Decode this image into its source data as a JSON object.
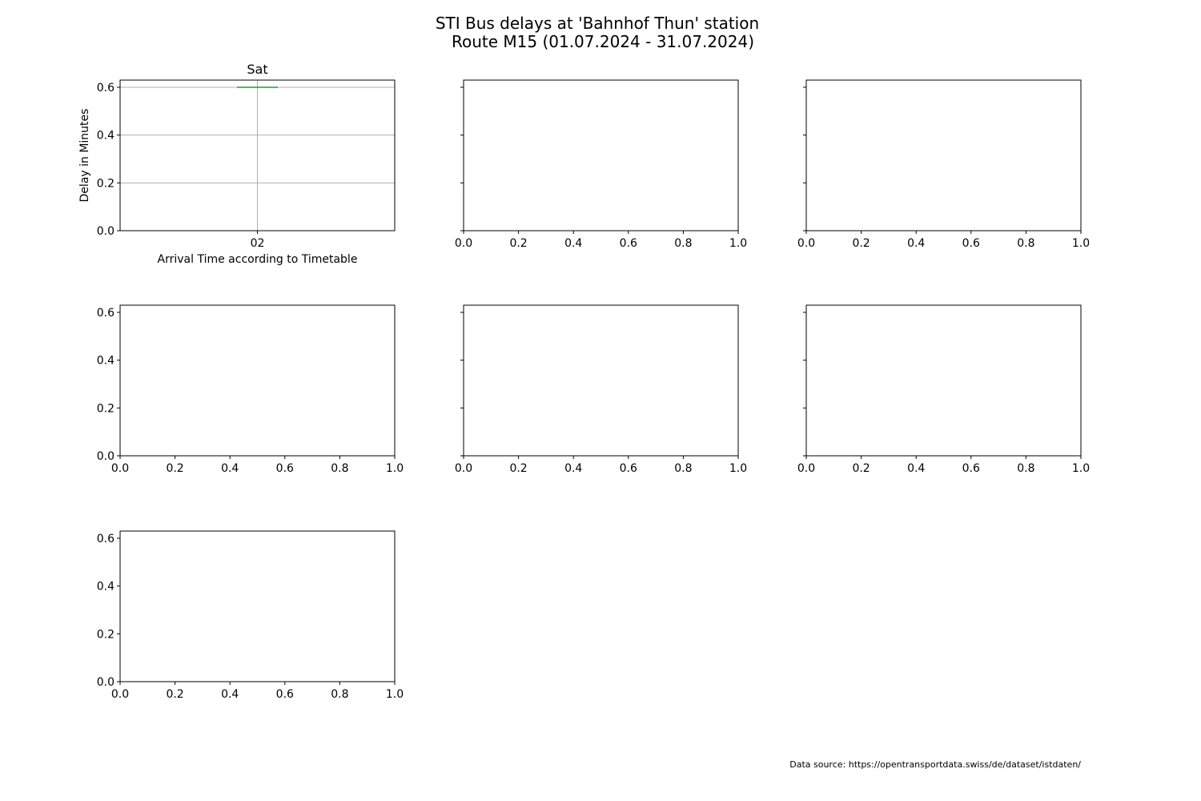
{
  "figure": {
    "title_line1": "STI Bus delays at 'Bahnhof Thun' station",
    "title_line2": "Route M15 (01.07.2024 - 31.07.2024)",
    "source_note": "Data source: https://opentransportdata.swiss/de/dataset/istdaten/"
  },
  "colors": {
    "median_line": "#2ca02c",
    "grid": "#b0b0b0",
    "axis": "#000000"
  },
  "chart_data": [
    {
      "type": "box",
      "title": "Sat",
      "xlabel": "Arrival Time according to Timetable",
      "ylabel": "Delay in Minutes",
      "grid": true,
      "categories": [
        "02"
      ],
      "boxes": [
        {
          "category": "02",
          "min": 0.6,
          "q1": 0.6,
          "median": 0.6,
          "q3": 0.6,
          "max": 0.6
        }
      ],
      "ylim": [
        0,
        0.63
      ],
      "yticks": [
        "0.0",
        "0.2",
        "0.4",
        "0.6"
      ]
    },
    {
      "type": "empty",
      "xlim": [
        0,
        1
      ],
      "xticks": [
        "0.0",
        "0.2",
        "0.4",
        "0.6",
        "0.8",
        "1.0"
      ],
      "ylim": [
        0,
        0.63
      ],
      "shared_y": true
    },
    {
      "type": "empty",
      "xlim": [
        0,
        1
      ],
      "xticks": [
        "0.0",
        "0.2",
        "0.4",
        "0.6",
        "0.8",
        "1.0"
      ],
      "ylim": [
        0,
        0.63
      ],
      "shared_y": true
    },
    {
      "type": "empty",
      "xlim": [
        0,
        1
      ],
      "xticks": [
        "0.0",
        "0.2",
        "0.4",
        "0.6",
        "0.8",
        "1.0"
      ],
      "ylim": [
        0,
        0.63
      ],
      "yticks": [
        "0.0",
        "0.2",
        "0.4",
        "0.6"
      ]
    },
    {
      "type": "empty",
      "xlim": [
        0,
        1
      ],
      "xticks": [
        "0.0",
        "0.2",
        "0.4",
        "0.6",
        "0.8",
        "1.0"
      ],
      "ylim": [
        0,
        0.63
      ],
      "shared_y": true
    },
    {
      "type": "empty",
      "xlim": [
        0,
        1
      ],
      "xticks": [
        "0.0",
        "0.2",
        "0.4",
        "0.6",
        "0.8",
        "1.0"
      ],
      "ylim": [
        0,
        0.63
      ],
      "shared_y": true
    },
    {
      "type": "empty",
      "xlim": [
        0,
        1
      ],
      "xticks": [
        "0.0",
        "0.2",
        "0.4",
        "0.6",
        "0.8",
        "1.0"
      ],
      "ylim": [
        0,
        0.63
      ],
      "yticks": [
        "0.0",
        "0.2",
        "0.4",
        "0.6"
      ]
    }
  ]
}
